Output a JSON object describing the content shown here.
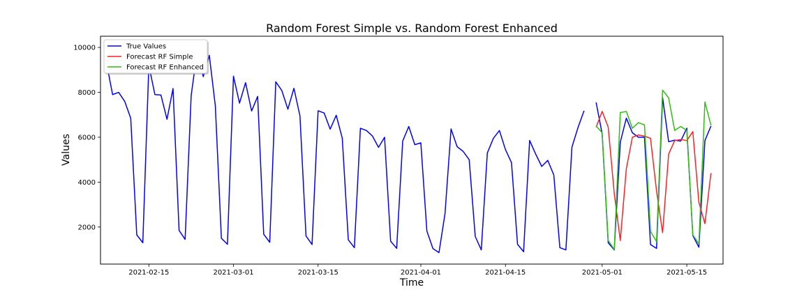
{
  "chart_data": {
    "type": "line",
    "title": "Random Forest Simple vs. Random Forest Enhanced",
    "xlabel": "Time",
    "ylabel": "Values",
    "xlim": [
      "2021-02-07",
      "2021-05-21"
    ],
    "ylim": [
      350,
      10500
    ],
    "x_ticks": [
      "2021-02-15",
      "2021-03-01",
      "2021-03-15",
      "2021-04-01",
      "2021-04-15",
      "2021-05-01",
      "2021-05-15"
    ],
    "y_ticks": [
      2000,
      4000,
      6000,
      8000,
      10000
    ],
    "legend_position": "top-left",
    "grid": false,
    "series": [
      {
        "name": "True Values",
        "color": "#0000ff",
        "start": "2021-02-08",
        "values": [
          9300,
          7900,
          8000,
          7600,
          6850,
          1650,
          1300,
          9200,
          7900,
          7880,
          6800,
          8170,
          1850,
          1450,
          7850,
          9850,
          8700,
          9650,
          7400,
          1500,
          1230,
          8720,
          7520,
          8430,
          7170,
          7820,
          1680,
          1320,
          8470,
          8080,
          7250,
          8180,
          6950,
          1600,
          1220,
          7180,
          7080,
          6360,
          6980,
          5960,
          1430,
          1080,
          6400,
          6300,
          6050,
          5550,
          6000,
          1370,
          1050,
          5830,
          6480,
          5670,
          5750,
          1820,
          1040,
          860,
          2600,
          6370,
          5580,
          5370,
          5000,
          1580,
          980,
          5300,
          5950,
          6300,
          5450,
          4870,
          1230,
          900,
          5860,
          5250,
          4700,
          4970,
          4320,
          1080,
          980,
          5560,
          6430,
          7180,
          null,
          7550,
          6150,
          1300,
          980,
          5780,
          6850,
          6200,
          6000,
          6000,
          1220,
          1050,
          7760,
          5800,
          5870,
          5830,
          6400,
          1620,
          1100,
          5850,
          6500
        ]
      },
      {
        "name": "Forecast RF Simple",
        "color": "#ff2020",
        "start": "2021-04-30",
        "values": [
          6450,
          7150,
          6450,
          3500,
          1400,
          4600,
          6000,
          6100,
          6050,
          5950,
          3600,
          1750,
          5250,
          5850,
          5900,
          5850,
          6250,
          3100,
          2150,
          4400
        ]
      },
      {
        "name": "Forecast RF Enhanced",
        "color": "#2fbf10",
        "start": "2021-04-30",
        "values": [
          6500,
          6200,
          1400,
          1000,
          7100,
          7150,
          6400,
          6650,
          6550,
          1800,
          1350,
          8100,
          7750,
          6300,
          6480,
          6300,
          1650,
          1250,
          7570,
          6530
        ]
      }
    ]
  }
}
